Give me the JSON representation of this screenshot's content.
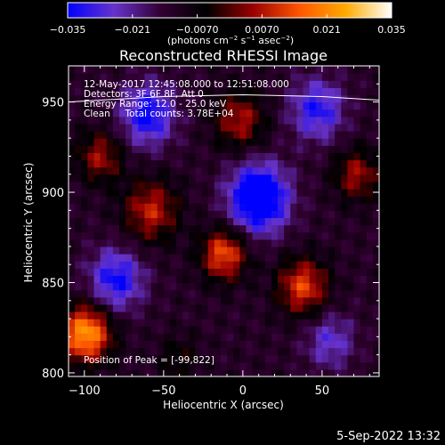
{
  "chart_data": {
    "type": "heatmap",
    "title": "Reconstructed RHESSI Image",
    "xlabel": "Heliocentric X (arcsec)",
    "ylabel": "Heliocentric Y (arcsec)",
    "xlim": [
      -110,
      86
    ],
    "ylim": [
      798,
      970
    ],
    "x_ticks": [
      -100,
      -50,
      0,
      50
    ],
    "y_ticks": [
      800,
      850,
      900,
      950
    ],
    "x_tick_labels": [
      "−100",
      "−50",
      "0",
      "50"
    ],
    "y_tick_labels": [
      "800",
      "850",
      "900",
      "950"
    ],
    "colorbar": {
      "min": -0.035,
      "max": 0.035,
      "ticks": [
        -0.035,
        -0.021,
        -0.007,
        0.007,
        0.021,
        0.035
      ],
      "tick_labels": [
        "−0.035",
        "−0.021",
        "−0.0070",
        "0.0070",
        "0.021",
        "0.035"
      ],
      "units_html": "(photons cm<tspan dy='-4' font-size='7'>−2</tspan><tspan dy='4'> s</tspan><tspan dy='-4' font-size='7'>−1</tspan><tspan dy='4'> asec</tspan><tspan dy='-4' font-size='7'>−2</tspan><tspan dy='4'>)</tspan>",
      "colors": [
        "#0000ff",
        "#6633cc",
        "#330033",
        "#000000",
        "#990000",
        "#ff5500",
        "#ffaa00",
        "#ffffff"
      ]
    },
    "annotations": [
      "12-May-2017 12:45:08.000 to 12:51:08.000",
      "Detectors: 3F 6F 8F, Att 0",
      "Energy Range: 12.0 - 25.0 keV",
      "Clean     Total counts: 3.78E+04"
    ],
    "peak_label": "Position of Peak = [-99,822]",
    "peak_position": [
      -99,
      822
    ],
    "sources": [
      {
        "x": -99,
        "y": 822,
        "amplitude": 0.035,
        "width": 11
      },
      {
        "x": -12,
        "y": 866,
        "amplitude": 0.026,
        "width": 10
      },
      {
        "x": 38,
        "y": 848,
        "amplitude": 0.024,
        "width": 11
      },
      {
        "x": -58,
        "y": 890,
        "amplitude": 0.02,
        "width": 12
      },
      {
        "x": -2,
        "y": 940,
        "amplitude": 0.018,
        "width": 11
      },
      {
        "x": -90,
        "y": 920,
        "amplitude": 0.017,
        "width": 10
      },
      {
        "x": 72,
        "y": 910,
        "amplitude": 0.017,
        "width": 10
      },
      {
        "x": 10,
        "y": 897,
        "amplitude": -0.035,
        "width": 13
      },
      {
        "x": -80,
        "y": 852,
        "amplitude": -0.022,
        "width": 12
      },
      {
        "x": -60,
        "y": 943,
        "amplitude": -0.023,
        "width": 12
      },
      {
        "x": 47,
        "y": 946,
        "amplitude": -0.02,
        "width": 12
      },
      {
        "x": 55,
        "y": 818,
        "amplitude": -0.014,
        "width": 11
      },
      {
        "x": -40,
        "y": 808,
        "amplitude": 0.008,
        "width": 9
      }
    ],
    "limb": {
      "x_data": [
        -110,
        -50,
        0,
        50,
        86
      ],
      "y_data": [
        950,
        953,
        954,
        953,
        951
      ]
    }
  },
  "footer": {
    "timestamp": "5-Sep-2022 13:32"
  }
}
